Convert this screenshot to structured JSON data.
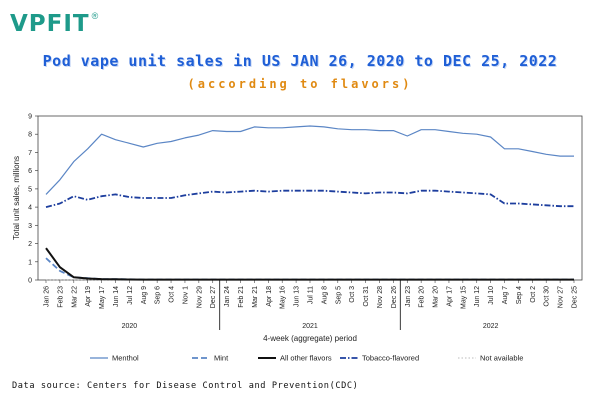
{
  "brand": {
    "name": "VPFIT",
    "reg": "®"
  },
  "header": {
    "title": "Pod vape unit sales in US JAN 26, 2020 to DEC 25, 2022",
    "subtitle": "(according to flavors)"
  },
  "source": "Data source: Centers for Disease Control and Prevention(CDC)",
  "colors": {
    "menthol": "#5b86c5",
    "mint": "#5b86c5",
    "other": "#111111",
    "tobacco": "#1d3e9e",
    "na": "#bbbbbb",
    "title": "#1f5fd6",
    "subtitle": "#e08a12",
    "brand": "#1e9a8a"
  },
  "chart_data": {
    "type": "line",
    "title": "",
    "xlabel": "4-week (aggregate) period",
    "ylabel": "Total unit sales, millions",
    "ylim": [
      0,
      9
    ],
    "yticks": [
      0,
      1,
      2,
      3,
      4,
      5,
      6,
      7,
      8,
      9
    ],
    "grid": false,
    "legend_position": "bottom",
    "categories": [
      "Jan 26",
      "Feb 23",
      "Mar 22",
      "Apr 19",
      "May 17",
      "Jun 14",
      "Jul 12",
      "Aug 9",
      "Sep 6",
      "Oct 4",
      "Nov 1",
      "Nov 29",
      "Dec 27",
      "Jan 24",
      "Feb 21",
      "Mar 21",
      "Apr 18",
      "May 16",
      "Jun 13",
      "Jul 11",
      "Aug 8",
      "Sep 5",
      "Oct 3",
      "Oct 31",
      "Nov 28",
      "Dec 26",
      "Jan 23",
      "Feb 20",
      "Mar 20",
      "Apr 17",
      "May 15",
      "Jun 12",
      "Jul 10",
      "Aug 7",
      "Sep 4",
      "Oct 2",
      "Oct 30",
      "Nov 27",
      "Dec 25"
    ],
    "year_groups": [
      {
        "label": "2020",
        "start": 0,
        "end": 12
      },
      {
        "label": "2021",
        "start": 13,
        "end": 25
      },
      {
        "label": "2022",
        "start": 26,
        "end": 38
      }
    ],
    "series": [
      {
        "name": "Menthol",
        "style": "solid",
        "values": [
          4.7,
          5.5,
          6.5,
          7.2,
          8.0,
          7.7,
          7.5,
          7.3,
          7.5,
          7.6,
          7.8,
          7.95,
          8.2,
          8.15,
          8.15,
          8.4,
          8.35,
          8.35,
          8.4,
          8.45,
          8.4,
          8.3,
          8.25,
          8.25,
          8.2,
          8.2,
          7.9,
          8.25,
          8.25,
          8.15,
          8.05,
          8.0,
          7.85,
          7.2,
          7.2,
          7.05,
          6.9,
          6.8,
          6.8
        ]
      },
      {
        "name": "Mint",
        "style": "dashed",
        "values": [
          1.2,
          0.5,
          0.15,
          0.1,
          0.05,
          0.05,
          0.04,
          0.03,
          0.03,
          0.03,
          0.03,
          0.03,
          0.03,
          0.03,
          0.03,
          0.03,
          0.03,
          0.03,
          0.03,
          0.03,
          0.03,
          0.03,
          0.03,
          0.03,
          0.03,
          0.03,
          0.03,
          0.03,
          0.03,
          0.03,
          0.03,
          0.03,
          0.03,
          0.03,
          0.03,
          0.03,
          0.03,
          0.03,
          0.03
        ]
      },
      {
        "name": "All other flavors",
        "style": "solid-thick",
        "values": [
          1.75,
          0.7,
          0.15,
          0.08,
          0.05,
          0.04,
          0.03,
          0.02,
          0.02,
          0.02,
          0.02,
          0.02,
          0.02,
          0.02,
          0.02,
          0.02,
          0.02,
          0.02,
          0.02,
          0.02,
          0.02,
          0.02,
          0.02,
          0.02,
          0.02,
          0.02,
          0.02,
          0.02,
          0.02,
          0.02,
          0.02,
          0.02,
          0.02,
          0.02,
          0.02,
          0.02,
          0.02,
          0.02,
          0.02
        ]
      },
      {
        "name": "Tobacco-flavored",
        "style": "dashdot",
        "values": [
          4.0,
          4.2,
          4.6,
          4.4,
          4.6,
          4.7,
          4.55,
          4.5,
          4.5,
          4.5,
          4.65,
          4.75,
          4.85,
          4.8,
          4.85,
          4.9,
          4.85,
          4.9,
          4.9,
          4.9,
          4.9,
          4.85,
          4.8,
          4.75,
          4.8,
          4.8,
          4.75,
          4.9,
          4.9,
          4.85,
          4.8,
          4.75,
          4.7,
          4.2,
          4.2,
          4.15,
          4.1,
          4.05,
          4.05
        ]
      },
      {
        "name": "Not available",
        "style": "dotted",
        "values": [
          0.01,
          0.01,
          0.01,
          0.01,
          0.01,
          0.01,
          0.01,
          0.01,
          0.01,
          0.01,
          0.01,
          0.01,
          0.01,
          0.01,
          0.01,
          0.01,
          0.01,
          0.01,
          0.01,
          0.01,
          0.01,
          0.01,
          0.01,
          0.01,
          0.01,
          0.01,
          0.01,
          0.01,
          0.01,
          0.01,
          0.01,
          0.01,
          0.01,
          0.01,
          0.01,
          0.01,
          0.01,
          0.01,
          0.01
        ]
      }
    ]
  }
}
